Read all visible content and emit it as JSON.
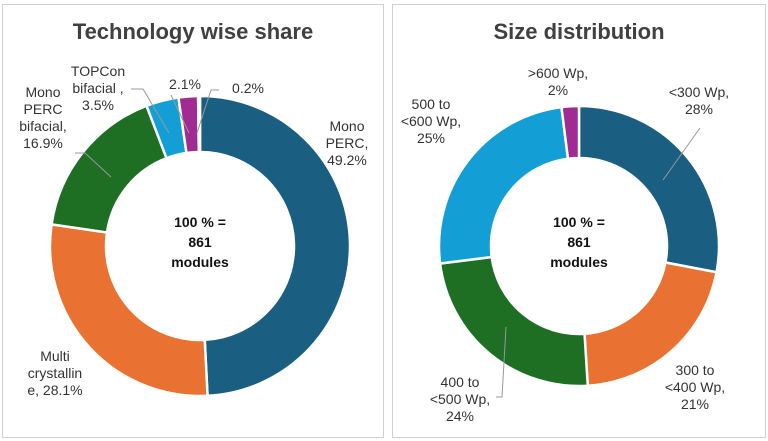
{
  "chart_data": [
    {
      "type": "pie",
      "title": "Technology wise share",
      "center_text": [
        "100 % =",
        "861",
        "modules"
      ],
      "slices": [
        {
          "label": [
            "Mono",
            "PERC,",
            "49.2%"
          ],
          "value": 49.2,
          "color": "#1a5f82"
        },
        {
          "label": [
            "Multi",
            "crystallin",
            "e, 28.1%"
          ],
          "value": 28.1,
          "color": "#e97132"
        },
        {
          "label": [
            "Mono",
            "PERC",
            "bifacial,",
            "16.9%"
          ],
          "value": 16.9,
          "color": "#1e6e24"
        },
        {
          "label": [
            "TOPCon",
            "bifacial ,",
            "3.5%"
          ],
          "value": 3.5,
          "color": "#139fd6"
        },
        {
          "label": [
            "2.1%"
          ],
          "value": 2.1,
          "color": "#a02b93"
        },
        {
          "label": [
            "0.2%"
          ],
          "value": 0.2,
          "color": "#7f7f7f"
        }
      ]
    },
    {
      "type": "pie",
      "title": "Size distribution",
      "center_text": [
        "100 % =",
        "861",
        "modules"
      ],
      "slices": [
        {
          "label": [
            "<300 Wp,",
            "28%"
          ],
          "value": 28,
          "color": "#1a5f82"
        },
        {
          "label": [
            "300 to",
            "<400 Wp,",
            "21%"
          ],
          "value": 21,
          "color": "#e97132"
        },
        {
          "label": [
            "400 to",
            "<500 Wp,",
            "24%"
          ],
          "value": 24,
          "color": "#1e6e24"
        },
        {
          "label": [
            "500 to",
            "<600 Wp,",
            "25%"
          ],
          "value": 25,
          "color": "#139fd6"
        },
        {
          "label": [
            ">600 Wp,",
            "2%"
          ],
          "value": 2,
          "color": "#a02b93"
        }
      ]
    }
  ]
}
